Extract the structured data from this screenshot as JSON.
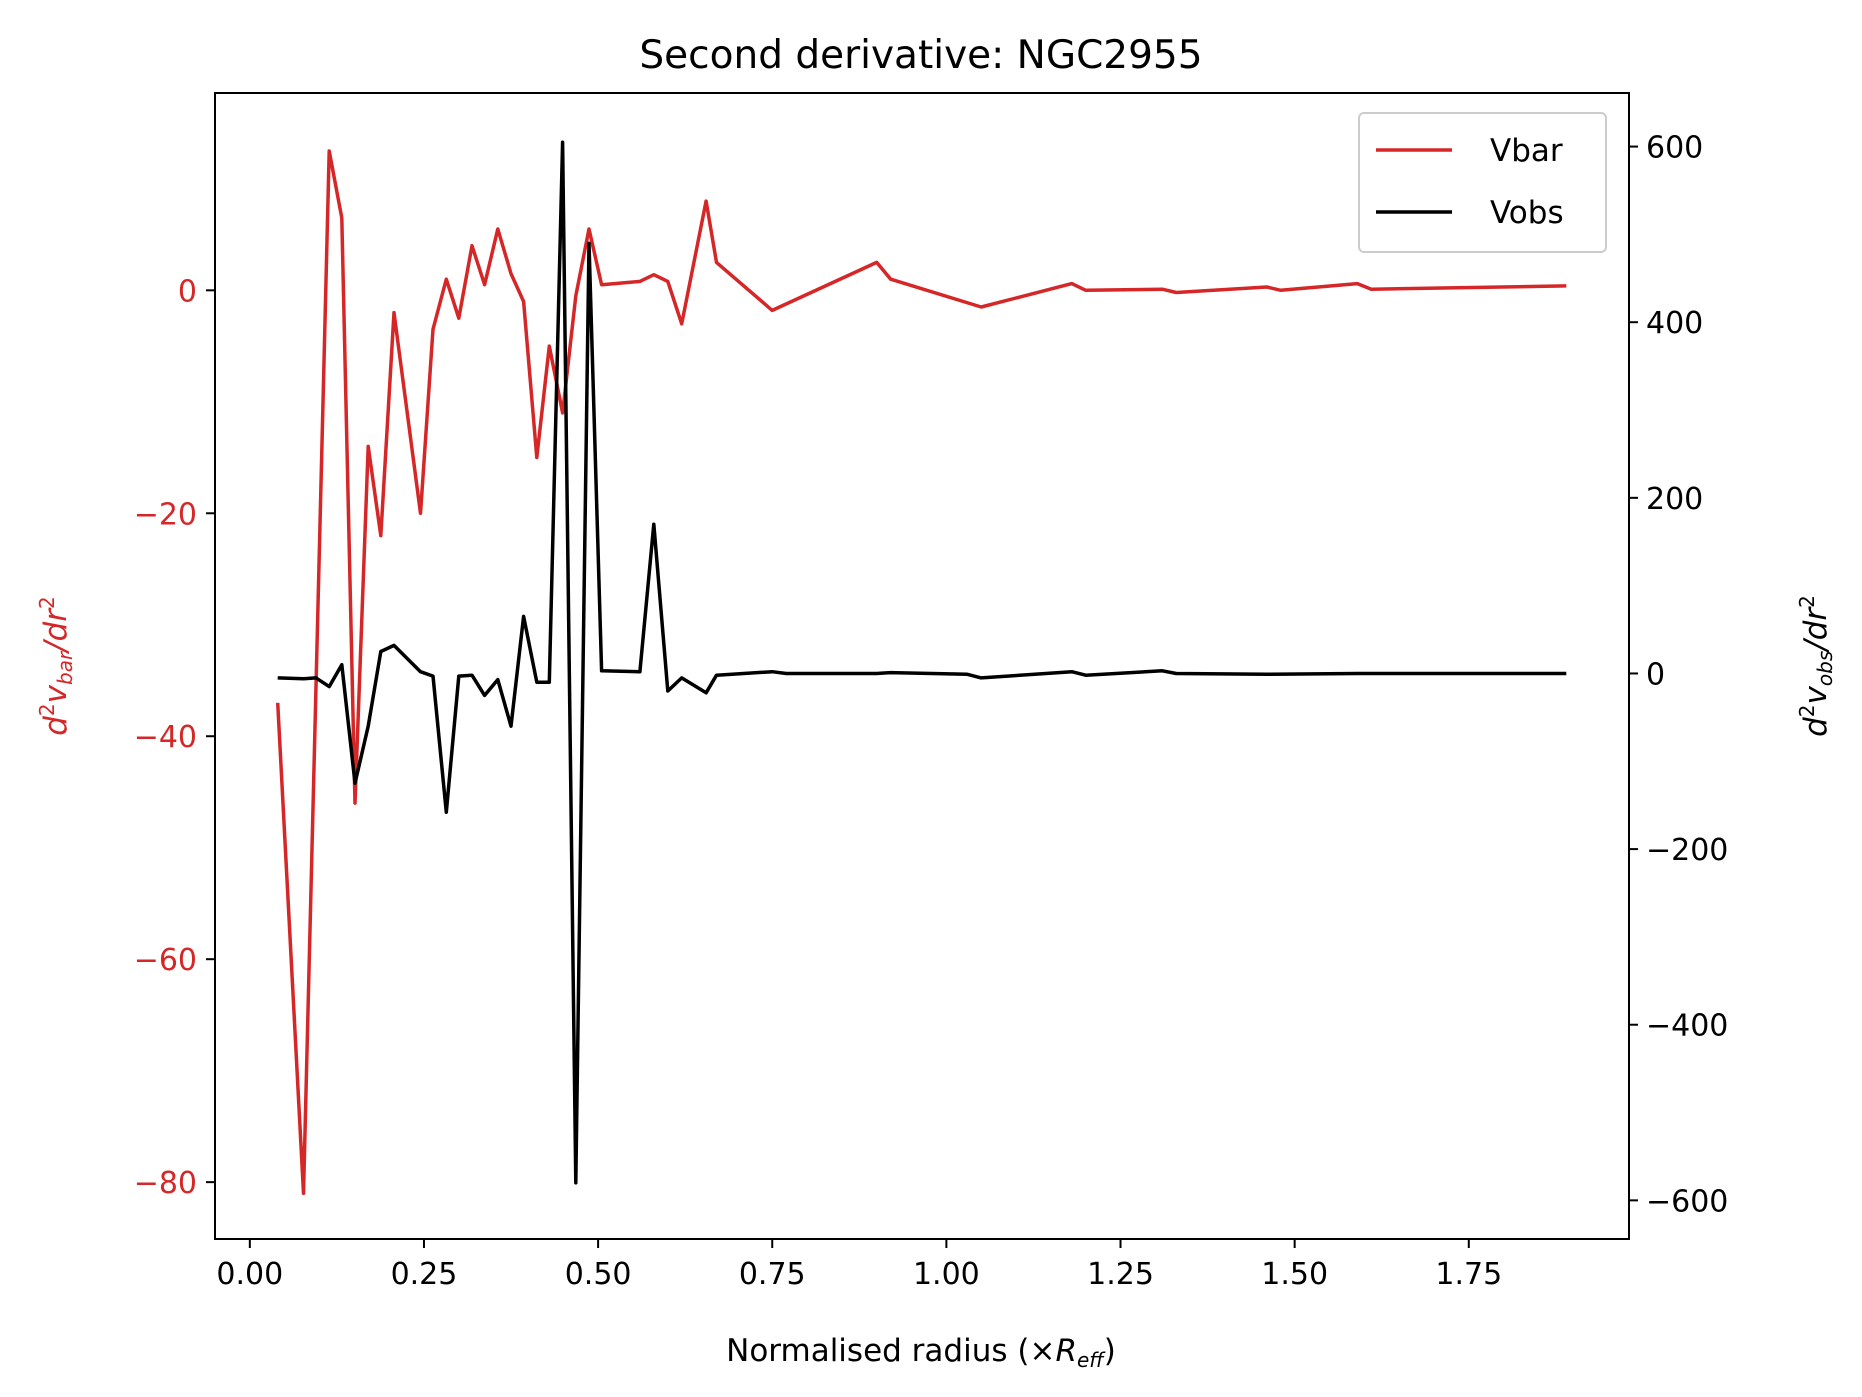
{
  "chart_data": {
    "type": "line",
    "title": "Second derivative: NGC2955",
    "xlabel": {
      "main": "Normalised radius (×",
      "var": "R",
      "sub": "eff",
      "close": ")"
    },
    "ylabel_left": {
      "d": "d",
      "exp": "2",
      "var": "v",
      "sub": "bar",
      "rest": "/dr",
      "exp2": "2"
    },
    "ylabel_right": {
      "d": "d",
      "exp": "2",
      "var": "v",
      "sub": "obs",
      "rest": "/dr",
      "exp2": "2"
    },
    "xlim": [
      -0.05,
      1.98
    ],
    "ylim_left": [
      -85.1,
      17.7
    ],
    "ylim_right": [
      -644,
      661
    ],
    "x_ticks": [
      0.0,
      0.25,
      0.5,
      0.75,
      1.0,
      1.25,
      1.5,
      1.75
    ],
    "x_tick_labels": [
      "0.00",
      "0.25",
      "0.50",
      "0.75",
      "1.00",
      "1.25",
      "1.50",
      "1.75"
    ],
    "y_left_ticks": [
      0,
      -20,
      -40,
      -60,
      -80
    ],
    "y_left_tick_labels": [
      "0",
      "−20",
      "−40",
      "−60",
      "−80"
    ],
    "y_right_ticks": [
      600,
      400,
      200,
      0,
      -200,
      -400,
      -600
    ],
    "y_right_tick_labels": [
      "600",
      "400",
      "200",
      "0",
      "−200",
      "−400",
      "−600"
    ],
    "legend_position": "top-right",
    "grid": false,
    "colors": {
      "vbar": "#d62728",
      "vobs": "#000000",
      "left_axis": "#d62728",
      "right_axis": "#000000"
    },
    "series": [
      {
        "name": "Vbar",
        "axis": "left",
        "color": "#d62728",
        "x": [
          0.04,
          0.077,
          0.114,
          0.132,
          0.151,
          0.17,
          0.188,
          0.207,
          0.245,
          0.263,
          0.282,
          0.3,
          0.319,
          0.337,
          0.356,
          0.375,
          0.393,
          0.412,
          0.43,
          0.449,
          0.468,
          0.487,
          0.505,
          0.56,
          0.58,
          0.6,
          0.62,
          0.655,
          0.67,
          0.75,
          0.9,
          0.92,
          1.05,
          1.18,
          1.2,
          1.31,
          1.33,
          1.46,
          1.48,
          1.59,
          1.61,
          1.89
        ],
        "y": [
          -37,
          -81,
          12.5,
          6.5,
          -46,
          -14,
          -22,
          -2,
          -20,
          -3.5,
          1,
          -2.5,
          4,
          0.5,
          5.5,
          1.5,
          -1,
          -15,
          -5,
          -11,
          -0.5,
          5.5,
          0.5,
          0.8,
          1.4,
          0.8,
          -3,
          8,
          2.5,
          -1.8,
          2.5,
          1,
          -1.5,
          0.6,
          0,
          0.1,
          -0.2,
          0.3,
          0,
          0.6,
          0.1,
          0.4
        ]
      },
      {
        "name": "Vobs",
        "axis": "right",
        "color": "#000000",
        "x": [
          0.04,
          0.077,
          0.095,
          0.114,
          0.132,
          0.151,
          0.17,
          0.188,
          0.207,
          0.245,
          0.263,
          0.282,
          0.3,
          0.319,
          0.337,
          0.356,
          0.375,
          0.393,
          0.412,
          0.43,
          0.449,
          0.468,
          0.487,
          0.505,
          0.56,
          0.58,
          0.6,
          0.62,
          0.655,
          0.67,
          0.75,
          0.77,
          0.9,
          0.92,
          1.03,
          1.05,
          1.18,
          1.2,
          1.31,
          1.33,
          1.46,
          1.59,
          1.61,
          1.89
        ],
        "y": [
          -5,
          -6,
          -5,
          -15,
          10,
          -125,
          -60,
          25,
          32,
          2,
          -3,
          -158,
          -3,
          -2,
          -25,
          -7,
          -60,
          65,
          -10,
          -10,
          605,
          -580,
          490,
          3,
          2,
          170,
          -20,
          -5,
          -22,
          -2,
          2,
          0,
          0,
          1,
          -1,
          -5,
          2,
          -2,
          3,
          0,
          -1,
          0,
          0,
          0
        ]
      }
    ]
  }
}
